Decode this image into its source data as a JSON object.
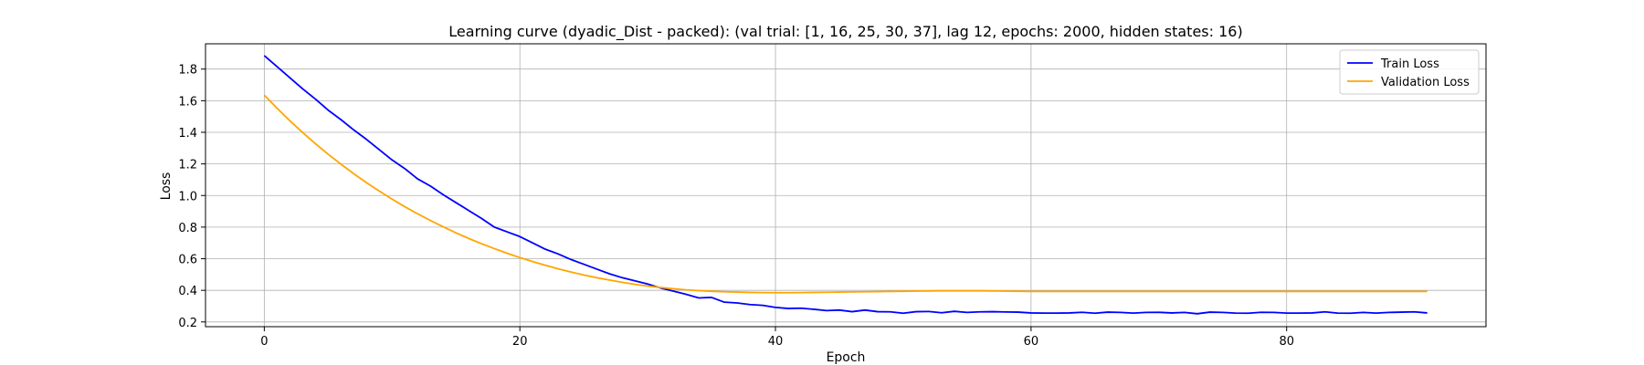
{
  "chart_data": {
    "type": "line",
    "title": "Learning curve (dyadic_Dist - packed): (val trial: [1, 16, 25, 30, 37], lag 12, epochs: 2000, hidden states: 16)",
    "xlabel": "Epoch",
    "ylabel": "Loss",
    "xlim": [
      -4.6,
      95.6
    ],
    "ylim": [
      0.17,
      1.96
    ],
    "xticks": [
      0,
      20,
      40,
      60,
      80
    ],
    "yticks": [
      0.2,
      0.4,
      0.6,
      0.8,
      1.0,
      1.2,
      1.4,
      1.6,
      1.8
    ],
    "xtick_labels": [
      "0",
      "20",
      "40",
      "60",
      "80"
    ],
    "ytick_labels": [
      "0.2",
      "0.4",
      "0.6",
      "0.8",
      "1.0",
      "1.2",
      "1.4",
      "1.6",
      "1.8"
    ],
    "grid": true,
    "legend_position": "top-right",
    "series": [
      {
        "name": "Train Loss",
        "color": "#0000ff",
        "values": [
          1.885,
          1.815,
          1.745,
          1.675,
          1.61,
          1.54,
          1.48,
          1.415,
          1.355,
          1.29,
          1.225,
          1.17,
          1.105,
          1.06,
          1.005,
          0.955,
          0.905,
          0.855,
          0.8,
          0.77,
          0.74,
          0.7,
          0.66,
          0.63,
          0.595,
          0.565,
          0.535,
          0.505,
          0.48,
          0.46,
          0.44,
          0.415,
          0.395,
          0.375,
          0.352,
          0.355,
          0.325,
          0.32,
          0.31,
          0.305,
          0.292,
          0.285,
          0.287,
          0.28,
          0.272,
          0.275,
          0.265,
          0.275,
          0.265,
          0.264,
          0.255,
          0.265,
          0.266,
          0.258,
          0.267,
          0.26,
          0.264,
          0.265,
          0.263,
          0.262,
          0.257,
          0.256,
          0.256,
          0.257,
          0.261,
          0.255,
          0.262,
          0.26,
          0.256,
          0.26,
          0.261,
          0.257,
          0.26,
          0.252,
          0.262,
          0.26,
          0.256,
          0.255,
          0.261,
          0.26,
          0.256,
          0.256,
          0.257,
          0.264,
          0.256,
          0.255,
          0.26,
          0.256,
          0.26,
          0.262,
          0.264,
          0.257
        ]
      },
      {
        "name": "Validation Loss",
        "color": "#ffa500",
        "values": [
          1.635,
          1.552,
          1.473,
          1.399,
          1.328,
          1.261,
          1.198,
          1.138,
          1.081,
          1.028,
          0.977,
          0.929,
          0.884,
          0.842,
          0.802,
          0.764,
          0.728,
          0.695,
          0.664,
          0.635,
          0.607,
          0.582,
          0.558,
          0.536,
          0.516,
          0.497,
          0.48,
          0.465,
          0.451,
          0.438,
          0.427,
          0.418,
          0.41,
          0.403,
          0.398,
          0.394,
          0.391,
          0.389,
          0.387,
          0.386,
          0.385,
          0.385,
          0.386,
          0.387,
          0.388,
          0.389,
          0.39,
          0.391,
          0.392,
          0.393,
          0.394,
          0.395,
          0.396,
          0.397,
          0.397,
          0.397,
          0.397,
          0.396,
          0.395,
          0.394,
          0.393,
          0.393,
          0.393,
          0.393,
          0.393,
          0.393,
          0.393,
          0.393,
          0.393,
          0.393,
          0.393,
          0.393,
          0.393,
          0.393,
          0.393,
          0.393,
          0.393,
          0.393,
          0.393,
          0.393,
          0.393,
          0.393,
          0.393,
          0.393,
          0.393,
          0.393,
          0.393,
          0.393,
          0.393,
          0.393,
          0.393,
          0.393
        ]
      }
    ]
  }
}
